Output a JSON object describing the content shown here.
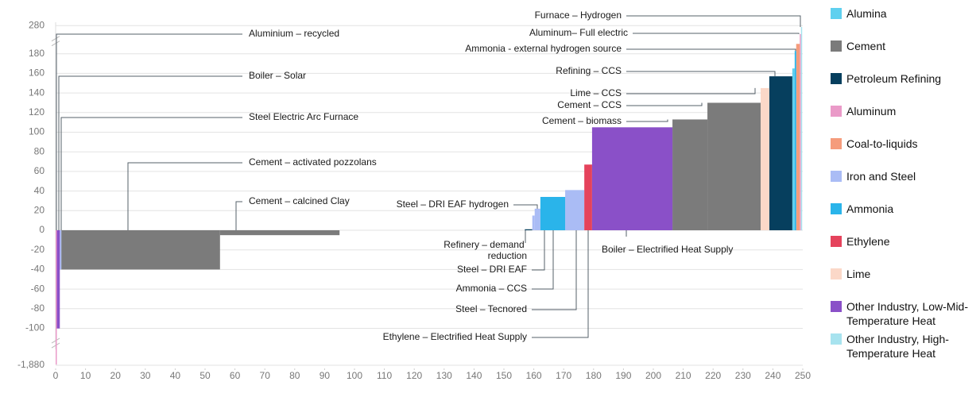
{
  "chart_data": {
    "type": "step-bar",
    "xlim": [
      0,
      250
    ],
    "xticks": [
      0,
      10,
      20,
      30,
      40,
      50,
      60,
      70,
      80,
      90,
      100,
      110,
      120,
      130,
      140,
      150,
      160,
      170,
      180,
      190,
      200,
      210,
      220,
      230,
      240,
      250
    ],
    "ylim": [
      -1880,
      280
    ],
    "yticks": [
      280,
      180,
      160,
      140,
      120,
      100,
      80,
      60,
      40,
      20,
      0,
      -20,
      -40,
      -60,
      -80,
      -100,
      {
        "value": -1880,
        "label": "-1,880"
      }
    ],
    "axis_breaks": {
      "upper": 180,
      "lower": -100
    },
    "grid": true,
    "series": [
      {
        "name": "Alumina",
        "color": "#5fd0ef",
        "bars": [
          {
            "label": null,
            "x": [
              246.5,
              247.3
            ],
            "value": 165
          }
        ]
      },
      {
        "name": "Cement",
        "color": "#7b7b7b",
        "bars": [
          {
            "label": "Cement – activated pozzolans",
            "x": [
              1.9,
              55
            ],
            "value": -40
          },
          {
            "label": "Cement – calcined Clay",
            "x": [
              55,
              95
            ],
            "value": -5
          },
          {
            "label": "Cement – biomass",
            "x": [
              206.4,
              218.1
            ],
            "value": 113
          },
          {
            "label": "Cement – CCS",
            "x": [
              218.1,
              235.9
            ],
            "value": 130
          }
        ]
      },
      {
        "name": "Petroleum Refining",
        "color": "#063f5e",
        "bars": [
          {
            "label": "Refinery – demand reduction",
            "x": [
              157,
              159.5
            ],
            "value": 1
          },
          {
            "label": "Refining – CCS",
            "x": [
              238.8,
              246.5
            ],
            "value": 157
          }
        ]
      },
      {
        "name": "Aluminum",
        "color": "#ea9ac8",
        "bars": [
          {
            "label": "Aluminium – recycled",
            "x": [
              0,
              0.4
            ],
            "value": -1850
          },
          {
            "label": "Aluminum– Full electric",
            "x": [
              249,
              249.4
            ],
            "value": 250
          }
        ]
      },
      {
        "name": "Coal-to-liquids",
        "color": "#f59c7c",
        "bars": [
          {
            "label": null,
            "x": [
              247.8,
              249
            ],
            "value": 215
          }
        ]
      },
      {
        "name": "Iron and Steel",
        "color": "#aabcf5",
        "bars": [
          {
            "label": "Steel Electric Arc Furnace",
            "x": [
              1.4,
              1.9
            ],
            "value": -40
          },
          {
            "label": "Steel – DRI EAF",
            "x": [
              159.5,
              160.3
            ],
            "value": 15
          },
          {
            "label": "Steel – DRI EAF hydrogen",
            "x": [
              160.3,
              162.2
            ],
            "value": 22
          },
          {
            "label": "Steel – Tecnored",
            "x": [
              170.5,
              176.9
            ],
            "value": 41
          }
        ]
      },
      {
        "name": "Ammonia",
        "color": "#2ab4ea",
        "bars": [
          {
            "label": "Ammonia – CCS",
            "x": [
              162.2,
              170.5
            ],
            "value": 34
          },
          {
            "label": "Ammonia  - external hydrogen source",
            "x": [
              247.3,
              247.8
            ],
            "value": 190
          }
        ]
      },
      {
        "name": "Ethylene",
        "color": "#e5435c",
        "bars": [
          {
            "label": "Ethylene – Electrified Heat Supply",
            "x": [
              176.9,
              179.5
            ],
            "value": 67
          }
        ]
      },
      {
        "name": "Lime",
        "color": "#fbd8c8",
        "bars": [
          {
            "label": "Lime – CCS",
            "x": [
              235.9,
              238.8
            ],
            "value": 145
          }
        ]
      },
      {
        "name": "Other Industry, Low-Mid-Temperature Heat",
        "color": "#8a50c8",
        "bars": [
          {
            "label": "Boiler – Solar",
            "x": [
              0.4,
              1.4
            ],
            "value": -107
          },
          {
            "label": "Boiler – Electrified Heat Supply",
            "x": [
              179.5,
              206.4
            ],
            "value": 105
          }
        ]
      },
      {
        "name": "Other Industry, High-Temperature Heat",
        "color": "#a7e3ef",
        "bars": [
          {
            "label": "Furnace – Hydrogen",
            "x": [
              249.4,
              249.8
            ],
            "value": 275
          }
        ]
      }
    ]
  }
}
